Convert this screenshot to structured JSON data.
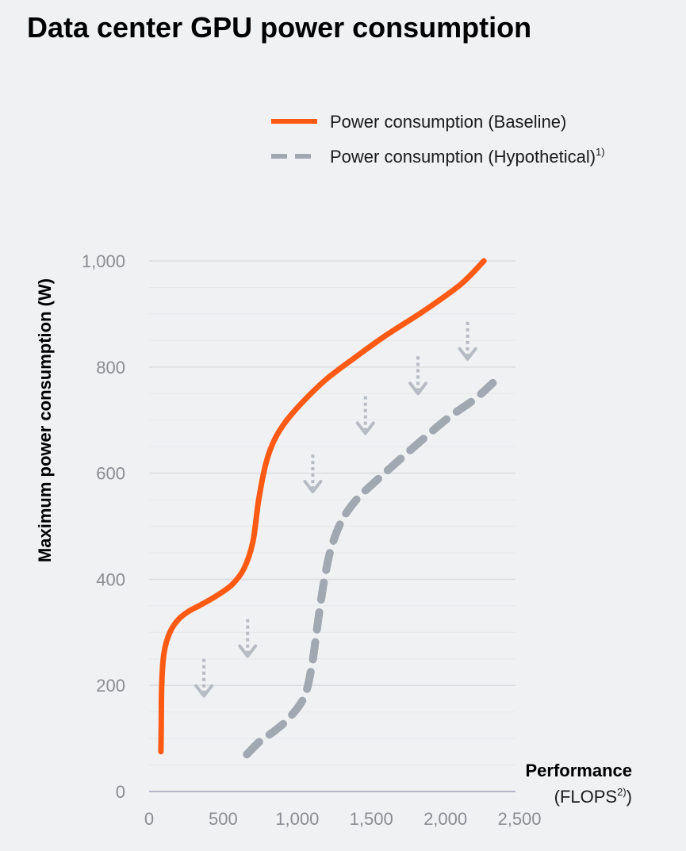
{
  "title": "Data center GPU power consumption",
  "chart_data": {
    "type": "line",
    "title": "Data center GPU power consumption",
    "xlabel": "Performance",
    "xlabel_sub": "(FLOPS",
    "xlabel_sup": "2)",
    "xlabel_close": ")",
    "ylabel": "Maximum power consumption (W)",
    "xlim": [
      0,
      2500
    ],
    "ylim": [
      0,
      1000
    ],
    "x_ticks": [
      0,
      500,
      1000,
      1500,
      2000,
      2500
    ],
    "x_tick_labels": [
      "0",
      "500",
      "1,000",
      "1,500",
      "2,000",
      "2,500"
    ],
    "y_ticks": [
      0,
      200,
      400,
      600,
      800,
      1000
    ],
    "y_tick_labels": [
      "0",
      "200",
      "400",
      "600",
      "800",
      "1,000"
    ],
    "legend": {
      "position": "top-right",
      "baseline_label": "Power consumption (Baseline)",
      "hypothetical_label": "Power consumption (Hypothetical)",
      "hypothetical_sup": "1)"
    },
    "colors": {
      "baseline": "#ff5a14",
      "hypothetical": "#a2a8b1",
      "arrow": "#b7bcc3",
      "grid_major": "#dcdde0",
      "grid_minor": "#e7e8ea",
      "axis": "#b4b7c8"
    },
    "series": [
      {
        "name": "Power consumption (Baseline)",
        "style": "solid",
        "x": [
          80,
          82,
          85,
          100,
          140,
          200,
          270,
          350,
          450,
          560,
          640,
          700,
          740,
          790,
          850,
          930,
          1050,
          1200,
          1400,
          1600,
          1850,
          2100,
          2260
        ],
        "y": [
          75,
          120,
          200,
          260,
          300,
          325,
          340,
          352,
          368,
          390,
          420,
          470,
          550,
          620,
          665,
          700,
          738,
          778,
          820,
          860,
          905,
          955,
          1000
        ]
      },
      {
        "name": "Power consumption (Hypothetical)",
        "style": "dashed",
        "x": [
          660,
          750,
          850,
          950,
          1050,
          1100,
          1130,
          1160,
          1190,
          1230,
          1300,
          1400,
          1550,
          1750,
          2000,
          2200,
          2320
        ],
        "y": [
          70,
          95,
          115,
          140,
          180,
          240,
          300,
          360,
          410,
          460,
          510,
          550,
          590,
          640,
          700,
          740,
          770
        ]
      }
    ],
    "reduction_arrows": [
      {
        "x": 370,
        "y_from": 250,
        "y_to": 180
      },
      {
        "x": 665,
        "y_from": 325,
        "y_to": 255
      },
      {
        "x": 1105,
        "y_from": 635,
        "y_to": 565
      },
      {
        "x": 1460,
        "y_from": 745,
        "y_to": 675
      },
      {
        "x": 1815,
        "y_from": 820,
        "y_to": 750
      },
      {
        "x": 2150,
        "y_from": 885,
        "y_to": 815
      }
    ]
  }
}
